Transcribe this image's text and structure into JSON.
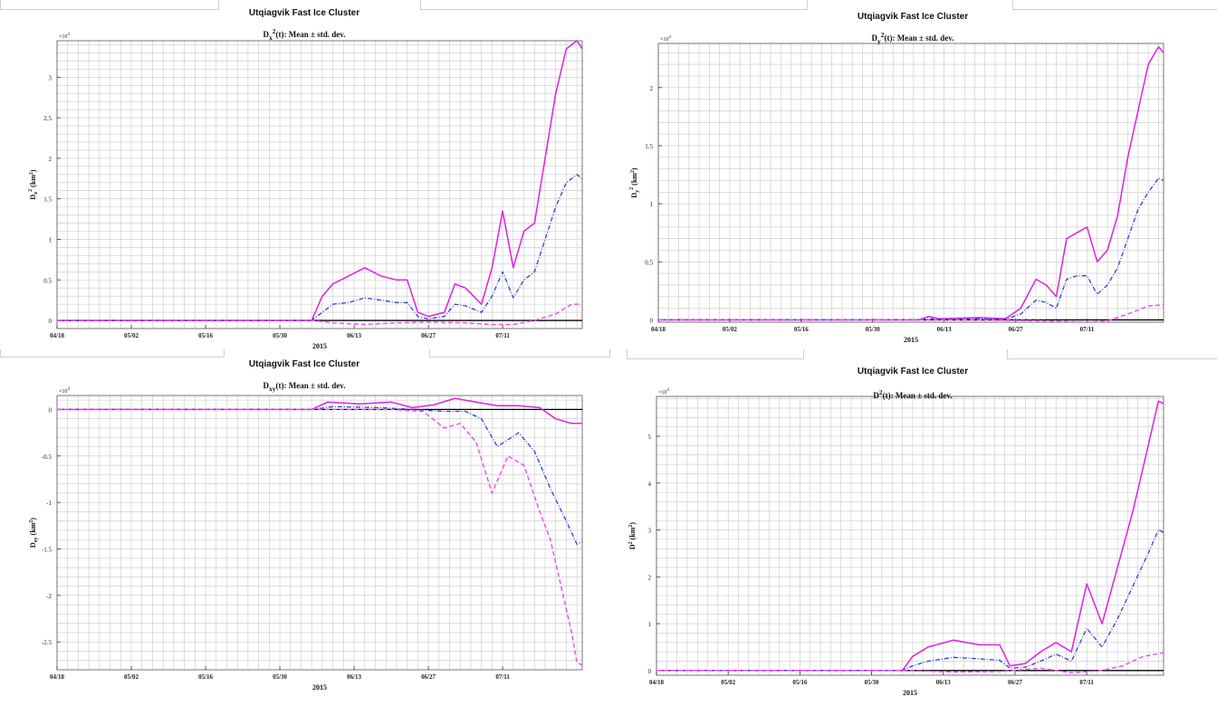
{
  "colors": {
    "mean": "#2f3fd8",
    "upper": "#e020e0",
    "lower": "#f050f0",
    "zero": "#000000",
    "grid": "#c8c8c8"
  },
  "chart_data": [
    {
      "type": "line",
      "title": "Utqiagvik Fast Ice Cluster",
      "subtitle": "D_x^2(t): Mean ± std. dev.",
      "ylabel": "D_x^2 (km^2)",
      "xlabel": "2015",
      "exponent_label": "×10^4",
      "xticks": [
        "04/18",
        "05/02",
        "05/16",
        "05/30",
        "06/13",
        "06/27",
        "07/11"
      ],
      "xlim": [
        "2015-04-18",
        "2015-07-26"
      ],
      "ylim": [
        -0.1,
        3.45
      ],
      "yticks": [
        0,
        0.5,
        1,
        1.5,
        2,
        2.5,
        3
      ],
      "ytick_labels": [
        "0",
        "0.5",
        "1",
        "1.5",
        "2",
        "2.5",
        "3"
      ],
      "grid": true,
      "series": [
        {
          "role": "upper",
          "style": "solid",
          "x": [
            "2015-04-18",
            "2015-06-05",
            "2015-06-07",
            "2015-06-09",
            "2015-06-12",
            "2015-06-15",
            "2015-06-18",
            "2015-06-21",
            "2015-06-23",
            "2015-06-25",
            "2015-06-27",
            "2015-06-30",
            "2015-07-02",
            "2015-07-04",
            "2015-07-07",
            "2015-07-09",
            "2015-07-11",
            "2015-07-13",
            "2015-07-15",
            "2015-07-17",
            "2015-07-19",
            "2015-07-21",
            "2015-07-23",
            "2015-07-25",
            "2015-07-26"
          ],
          "y": [
            0,
            0,
            0.3,
            0.45,
            0.55,
            0.65,
            0.55,
            0.5,
            0.5,
            0.1,
            0.05,
            0.1,
            0.45,
            0.4,
            0.2,
            0.65,
            1.35,
            0.65,
            1.1,
            1.2,
            2.0,
            2.8,
            3.35,
            3.45,
            3.35
          ]
        },
        {
          "role": "mean",
          "style": "dash-dot",
          "x": [
            "2015-04-18",
            "2015-06-05",
            "2015-06-07",
            "2015-06-09",
            "2015-06-12",
            "2015-06-15",
            "2015-06-18",
            "2015-06-21",
            "2015-06-23",
            "2015-06-25",
            "2015-06-27",
            "2015-06-30",
            "2015-07-02",
            "2015-07-04",
            "2015-07-07",
            "2015-07-09",
            "2015-07-11",
            "2015-07-13",
            "2015-07-15",
            "2015-07-17",
            "2015-07-19",
            "2015-07-21",
            "2015-07-23",
            "2015-07-25",
            "2015-07-26"
          ],
          "y": [
            0,
            0,
            0.1,
            0.2,
            0.22,
            0.28,
            0.25,
            0.22,
            0.22,
            0.05,
            0.02,
            0.05,
            0.2,
            0.18,
            0.1,
            0.3,
            0.6,
            0.28,
            0.5,
            0.6,
            1.0,
            1.4,
            1.7,
            1.8,
            1.75
          ]
        },
        {
          "role": "lower",
          "style": "dashed",
          "x": [
            "2015-04-18",
            "2015-06-05",
            "2015-06-09",
            "2015-06-15",
            "2015-06-21",
            "2015-06-27",
            "2015-07-04",
            "2015-07-09",
            "2015-07-13",
            "2015-07-17",
            "2015-07-21",
            "2015-07-24",
            "2015-07-26"
          ],
          "y": [
            0,
            0,
            -0.03,
            -0.05,
            -0.03,
            -0.02,
            -0.03,
            -0.05,
            -0.05,
            0.0,
            0.08,
            0.2,
            0.2
          ]
        }
      ]
    },
    {
      "type": "line",
      "title": "Utqiagvik Fast Ice Cluster",
      "subtitle": "D_y^2(t): Mean ± std. dev.",
      "ylabel": "D_y^2 (km^2)",
      "xlabel": "2015",
      "exponent_label": "×10^4",
      "xticks": [
        "04/18",
        "05/02",
        "05/16",
        "05/30",
        "06/13",
        "06/27",
        "07/11"
      ],
      "xlim": [
        "2015-04-18",
        "2015-07-26"
      ],
      "ylim": [
        -0.02,
        2.38
      ],
      "yticks": [
        0,
        0.5,
        1,
        1.5,
        2
      ],
      "ytick_labels": [
        "0",
        "0.5",
        "1",
        "1.5",
        "2"
      ],
      "grid": true,
      "series": [
        {
          "role": "upper",
          "style": "solid",
          "x": [
            "2015-04-18",
            "2015-06-08",
            "2015-06-10",
            "2015-06-12",
            "2015-06-20",
            "2015-06-25",
            "2015-06-28",
            "2015-07-01",
            "2015-07-03",
            "2015-07-05",
            "2015-07-07",
            "2015-07-09",
            "2015-07-11",
            "2015-07-13",
            "2015-07-15",
            "2015-07-17",
            "2015-07-19",
            "2015-07-21",
            "2015-07-23",
            "2015-07-25",
            "2015-07-26"
          ],
          "y": [
            0,
            0,
            0.03,
            0.01,
            0.02,
            0.01,
            0.1,
            0.35,
            0.3,
            0.2,
            0.7,
            0.75,
            0.8,
            0.5,
            0.6,
            0.9,
            1.4,
            1.8,
            2.2,
            2.35,
            2.3
          ]
        },
        {
          "role": "mean",
          "style": "dash-dot",
          "x": [
            "2015-04-18",
            "2015-06-08",
            "2015-06-10",
            "2015-06-12",
            "2015-06-20",
            "2015-06-25",
            "2015-06-28",
            "2015-07-01",
            "2015-07-03",
            "2015-07-05",
            "2015-07-07",
            "2015-07-09",
            "2015-07-11",
            "2015-07-13",
            "2015-07-15",
            "2015-07-17",
            "2015-07-19",
            "2015-07-21",
            "2015-07-23",
            "2015-07-25",
            "2015-07-26"
          ],
          "y": [
            0,
            0,
            0.01,
            0.005,
            0.01,
            0.005,
            0.05,
            0.17,
            0.15,
            0.1,
            0.35,
            0.38,
            0.38,
            0.22,
            0.3,
            0.45,
            0.7,
            0.95,
            1.1,
            1.22,
            1.2
          ]
        },
        {
          "role": "lower",
          "style": "dashed",
          "x": [
            "2015-04-18",
            "2015-06-20",
            "2015-06-27",
            "2015-07-04",
            "2015-07-11",
            "2015-07-15",
            "2015-07-19",
            "2015-07-23",
            "2015-07-26"
          ],
          "y": [
            0,
            0,
            -0.005,
            -0.01,
            -0.02,
            -0.01,
            0.05,
            0.12,
            0.13
          ]
        }
      ]
    },
    {
      "type": "line",
      "title": "Utqiagvik Fast Ice Cluster",
      "subtitle": "D_xy(t): Mean ± std. dev.",
      "ylabel": "D_xy (km^2)",
      "xlabel": "2015",
      "exponent_label": "×10^4",
      "xticks": [
        "04/18",
        "05/02",
        "05/16",
        "05/30",
        "06/13",
        "06/27",
        "07/11"
      ],
      "xlim": [
        "2015-04-18",
        "2015-07-26"
      ],
      "ylim": [
        -2.8,
        0.15
      ],
      "yticks": [
        0,
        -0.5,
        -1,
        -1.5,
        -2,
        -2.5
      ],
      "ytick_labels": [
        "0",
        "-0.5",
        "-1",
        "-1.5",
        "-2",
        "-2.5"
      ],
      "grid": true,
      "series": [
        {
          "role": "upper",
          "style": "solid",
          "x": [
            "2015-04-18",
            "2015-06-05",
            "2015-06-08",
            "2015-06-14",
            "2015-06-20",
            "2015-06-24",
            "2015-06-28",
            "2015-07-02",
            "2015-07-06",
            "2015-07-10",
            "2015-07-14",
            "2015-07-18",
            "2015-07-21",
            "2015-07-24",
            "2015-07-26"
          ],
          "y": [
            0,
            0,
            0.08,
            0.06,
            0.08,
            0.02,
            0.05,
            0.12,
            0.08,
            0.04,
            0.04,
            0.02,
            -0.1,
            -0.15,
            -0.15
          ]
        },
        {
          "role": "mean",
          "style": "dash-dot",
          "x": [
            "2015-04-18",
            "2015-06-05",
            "2015-06-09",
            "2015-06-18",
            "2015-06-24",
            "2015-06-30",
            "2015-07-04",
            "2015-07-07",
            "2015-07-10",
            "2015-07-14",
            "2015-07-17",
            "2015-07-20",
            "2015-07-23",
            "2015-07-25",
            "2015-07-26"
          ],
          "y": [
            0,
            0,
            0.03,
            0.02,
            0.0,
            -0.02,
            -0.02,
            -0.1,
            -0.4,
            -0.25,
            -0.45,
            -0.85,
            -1.2,
            -1.45,
            -1.42
          ]
        },
        {
          "role": "lower",
          "style": "dashed",
          "x": [
            "2015-04-18",
            "2015-06-20",
            "2015-06-26",
            "2015-06-30",
            "2015-07-03",
            "2015-07-06",
            "2015-07-09",
            "2015-07-12",
            "2015-07-15",
            "2015-07-18",
            "2015-07-20",
            "2015-07-22",
            "2015-07-24",
            "2015-07-25",
            "2015-07-26"
          ],
          "y": [
            0,
            0,
            -0.02,
            -0.2,
            -0.15,
            -0.35,
            -0.9,
            -0.5,
            -0.6,
            -1.1,
            -1.4,
            -1.9,
            -2.4,
            -2.72,
            -2.75
          ]
        }
      ]
    },
    {
      "type": "line",
      "title": "Utqiagvik Fast Ice Cluster",
      "subtitle": "D^2(t): Mean ± std. dev.",
      "ylabel": "D^2 (km^2)",
      "xlabel": "2015",
      "exponent_label": "×10^4",
      "xticks": [
        "04/18",
        "05/02",
        "05/16",
        "05/30",
        "06/13",
        "06/27",
        "07/11"
      ],
      "xlim": [
        "2015-04-18",
        "2015-07-26"
      ],
      "ylim": [
        -0.1,
        5.85
      ],
      "yticks": [
        0,
        1,
        2,
        3,
        4,
        5
      ],
      "ytick_labels": [
        "0",
        "1",
        "2",
        "3",
        "4",
        "5"
      ],
      "grid": true,
      "series": [
        {
          "role": "upper",
          "style": "solid",
          "x": [
            "2015-04-18",
            "2015-06-05",
            "2015-06-07",
            "2015-06-10",
            "2015-06-15",
            "2015-06-20",
            "2015-06-24",
            "2015-06-26",
            "2015-06-29",
            "2015-07-02",
            "2015-07-05",
            "2015-07-08",
            "2015-07-11",
            "2015-07-14",
            "2015-07-17",
            "2015-07-20",
            "2015-07-23",
            "2015-07-25",
            "2015-07-26"
          ],
          "y": [
            0,
            0,
            0.3,
            0.5,
            0.65,
            0.55,
            0.55,
            0.1,
            0.15,
            0.4,
            0.6,
            0.4,
            1.85,
            1.0,
            2.2,
            3.4,
            4.8,
            5.75,
            5.7
          ]
        },
        {
          "role": "mean",
          "style": "dash-dot",
          "x": [
            "2015-04-18",
            "2015-06-05",
            "2015-06-07",
            "2015-06-10",
            "2015-06-15",
            "2015-06-20",
            "2015-06-24",
            "2015-06-26",
            "2015-06-29",
            "2015-07-02",
            "2015-07-05",
            "2015-07-08",
            "2015-07-11",
            "2015-07-14",
            "2015-07-17",
            "2015-07-20",
            "2015-07-23",
            "2015-07-25",
            "2015-07-26"
          ],
          "y": [
            0,
            0,
            0.1,
            0.2,
            0.28,
            0.25,
            0.22,
            0.05,
            0.07,
            0.2,
            0.35,
            0.2,
            0.9,
            0.5,
            1.1,
            1.8,
            2.5,
            3.0,
            2.95
          ]
        },
        {
          "role": "lower",
          "style": "dashed",
          "x": [
            "2015-04-18",
            "2015-06-05",
            "2015-06-15",
            "2015-06-24",
            "2015-07-02",
            "2015-07-08",
            "2015-07-14",
            "2015-07-18",
            "2015-07-22",
            "2015-07-26"
          ],
          "y": [
            0,
            0,
            -0.03,
            -0.02,
            0.05,
            -0.05,
            0.0,
            0.1,
            0.3,
            0.38
          ]
        }
      ]
    }
  ]
}
